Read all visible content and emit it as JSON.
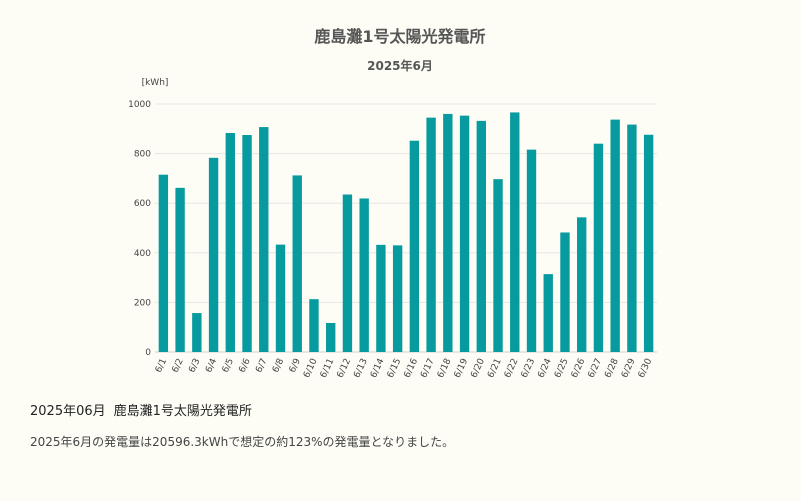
{
  "chart_data": {
    "type": "bar",
    "title": "鹿島灘1号太陽光発電所",
    "subtitle": "2025年6月",
    "ylabel": "[kWh]",
    "xlabel": "",
    "ylim": [
      0,
      1000
    ],
    "yticks": [
      0,
      200,
      400,
      600,
      800,
      1000
    ],
    "grid": true,
    "legend": "none",
    "bar_color": "#079a9e",
    "categories": [
      "6/1",
      "6/2",
      "6/3",
      "6/4",
      "6/5",
      "6/6",
      "6/7",
      "6/8",
      "6/9",
      "6/10",
      "6/11",
      "6/12",
      "6/13",
      "6/14",
      "6/15",
      "6/16",
      "6/17",
      "6/18",
      "6/19",
      "6/20",
      "6/21",
      "6/22",
      "6/23",
      "6/24",
      "6/25",
      "6/26",
      "6/27",
      "6/28",
      "6/29",
      "6/30"
    ],
    "values": [
      715,
      662,
      157,
      783,
      883,
      875,
      907,
      433,
      712,
      213,
      117,
      635,
      619,
      432,
      430,
      852,
      945,
      960,
      953,
      932,
      697,
      966,
      816,
      314,
      482,
      543,
      840,
      937,
      917,
      876
    ]
  },
  "footer": {
    "heading_month": "2025年06月",
    "heading_plant": "鹿島灘1号太陽光発電所",
    "summary": "2025年6月の発電量は20596.3kWhで想定の約123%の発電量となりました。"
  }
}
